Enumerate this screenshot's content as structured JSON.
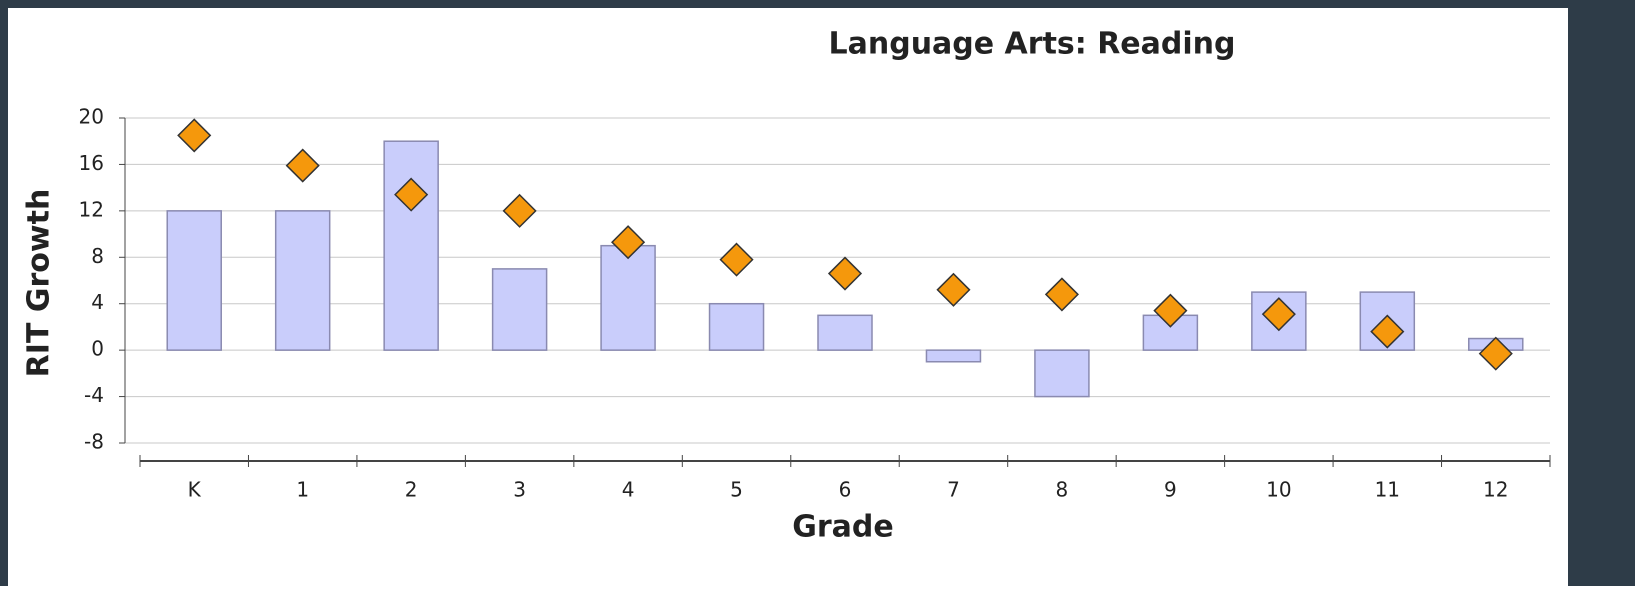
{
  "chart_data": {
    "type": "bar",
    "title": "Language Arts: Reading",
    "x_label": "Grade",
    "y_label": "RIT Growth",
    "categories": [
      "K",
      "1",
      "2",
      "3",
      "4",
      "5",
      "6",
      "7",
      "8",
      "9",
      "10",
      "11",
      "12"
    ],
    "series": [
      {
        "color": "#c9cdfb",
        "values": [
          12,
          12,
          18,
          7,
          9,
          4,
          3,
          -1,
          -4,
          3,
          5,
          5,
          1
        ]
      },
      {
        "type": "scatter",
        "color": "#f5980c",
        "values": [
          18.5,
          15.9,
          13.4,
          12.0,
          9.3,
          7.8,
          6.6,
          5.2,
          4.8,
          3.4,
          3.1,
          1.6,
          -0.3
        ]
      }
    ],
    "ylim": [
      -8,
      20
    ],
    "yticks": [
      -8,
      -4,
      0,
      4,
      8,
      12,
      16,
      20
    ],
    "grid": true
  }
}
